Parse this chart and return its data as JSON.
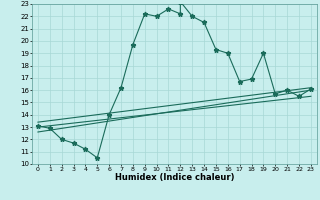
{
  "xlabel": "Humidex (Indice chaleur)",
  "xlim": [
    -0.5,
    23.5
  ],
  "ylim": [
    10,
    23
  ],
  "xticks": [
    0,
    1,
    2,
    3,
    4,
    5,
    6,
    7,
    8,
    9,
    10,
    11,
    12,
    13,
    14,
    15,
    16,
    17,
    18,
    19,
    20,
    21,
    22,
    23
  ],
  "yticks": [
    10,
    11,
    12,
    13,
    14,
    15,
    16,
    17,
    18,
    19,
    20,
    21,
    22,
    23
  ],
  "bg_color": "#c8eeed",
  "line_color": "#1a6b5a",
  "grid_color": "#b0dbd8",
  "main_data_x": [
    0,
    1,
    2,
    3,
    4,
    5,
    6,
    7,
    8,
    9,
    10,
    11,
    12,
    12,
    13,
    14,
    15,
    16,
    17,
    18,
    19,
    20,
    21,
    22,
    23
  ],
  "main_data_y": [
    13.1,
    12.9,
    12.0,
    11.7,
    11.2,
    10.5,
    14.0,
    16.2,
    19.7,
    22.2,
    22.0,
    22.6,
    22.2,
    23.2,
    22.0,
    21.5,
    19.3,
    19.0,
    16.7,
    16.9,
    19.0,
    15.7,
    16.0,
    15.5,
    16.1
  ],
  "reg_line1_x": [
    0,
    23
  ],
  "reg_line1_y": [
    12.6,
    16.0
  ],
  "reg_line2_x": [
    0,
    23
  ],
  "reg_line2_y": [
    13.0,
    15.5
  ],
  "reg_line3_x": [
    0,
    23
  ],
  "reg_line3_y": [
    13.4,
    16.2
  ],
  "marker": "*",
  "marker_size": 3.5,
  "linewidth": 0.8
}
